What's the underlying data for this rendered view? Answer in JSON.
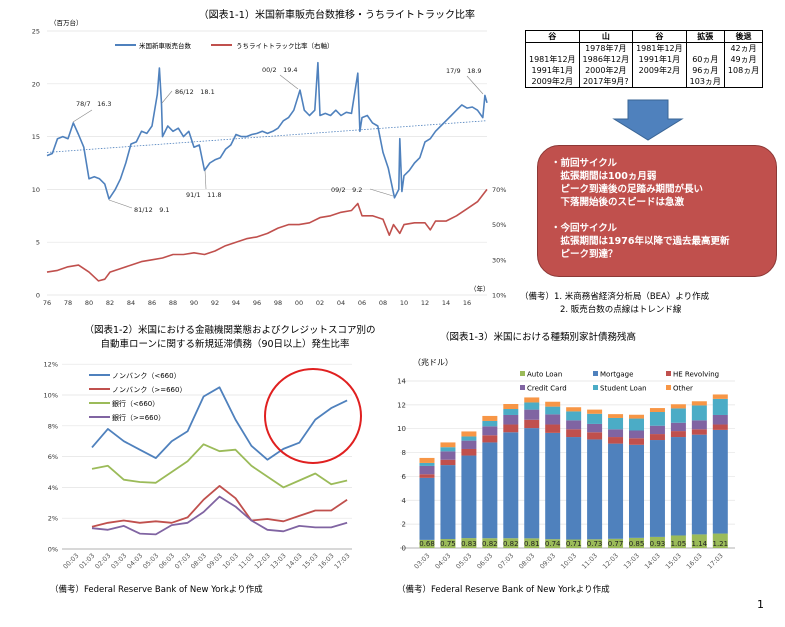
{
  "fig1": {
    "title": "（図表1-1）米国新車販売台数推移・うちライトトラック比率",
    "unit": "（百万台）",
    "year_unit": "（年）",
    "legend": [
      "米国新車販売台数",
      "うちライトトラック比率（右軸）"
    ],
    "annotations": [
      "78/7　16.3",
      "81/12　9.1",
      "86/12　18.1",
      "91/1　11.8",
      "00/2　19.4",
      "09/2　9.2",
      "17/9　18.9"
    ]
  },
  "fig1_table": {
    "headers": [
      "谷",
      "山",
      "谷",
      "拡張",
      "後退"
    ],
    "rows": [
      [
        "",
        "1978年7月",
        "1981年12月",
        "",
        "42ヵ月"
      ],
      [
        "1981年12月",
        "1986年12月",
        "1991年1月",
        "60ヵ月",
        "49ヵ月"
      ],
      [
        "1991年1月",
        "2000年2月",
        "2009年2月",
        "96ヵ月",
        "108ヵ月"
      ],
      [
        "2009年2月",
        "2017年9月?",
        "",
        "103ヵ月",
        ""
      ]
    ]
  },
  "callout": {
    "lines": [
      "・前回サイクル",
      "　拡張期間は100ヵ月弱",
      "　ピーク到達後の足踏み期間が長い",
      "　下落開始後のスピードは急激",
      "",
      "・今回サイクル",
      "　拡張期間は1976年以降で過去最高更新",
      "　ピーク到達？"
    ]
  },
  "fig1_notes": [
    "（備考）1. 米商務省経済分析局（BEA）より作成",
    "2. 販売台数の点線はトレンド線"
  ],
  "fig2": {
    "title_line1": "（図表1-2）米国における金融機関業態およびクレジットスコア別の",
    "title_line2": "自動車ローンに関する新規延滞債務（90日以上）発生比率",
    "note": "（備考）Federal Reserve Bank of New Yorkより作成"
  },
  "fig3": {
    "title": "（図表1-3）米国における種類別家計債務残高",
    "unit": "（兆ドル）",
    "note": "（備考）Federal Reserve Bank of New Yorkより作成"
  },
  "page_number": "1",
  "chart_data": [
    {
      "type": "line",
      "title": "（図表1-1）米国新車販売台数推移・うちライトトラック比率",
      "ylabel": "百万台",
      "ylim": [
        0,
        25
      ],
      "yticks": [
        0,
        5,
        10,
        15,
        20,
        25
      ],
      "y2ticks": [
        "10%",
        "30%",
        "50%",
        "70%"
      ],
      "y2lim": [
        10,
        160
      ],
      "xticks": [
        "76",
        "78",
        "80",
        "82",
        "84",
        "86",
        "88",
        "90",
        "92",
        "94",
        "96",
        "98",
        "00",
        "02",
        "04",
        "06",
        "08",
        "10",
        "12",
        "14",
        "16"
      ],
      "series": [
        {
          "name": "米国新車販売台数",
          "color": "#4f81bd",
          "x": [
            1976,
            1976.5,
            1977,
            1977.5,
            1978,
            1978.5,
            1979,
            1979.5,
            1980,
            1980.5,
            1981,
            1981.5,
            1981.9,
            1982.5,
            1983,
            1983.5,
            1984,
            1984.5,
            1985,
            1985.5,
            1986,
            1986.5,
            1986.7,
            1986.9,
            1987,
            1987.5,
            1988,
            1988.5,
            1989,
            1989.5,
            1990,
            1990.5,
            1991,
            1991.5,
            1992,
            1992.5,
            1993,
            1993.5,
            1994,
            1994.5,
            1995,
            1995.5,
            1996,
            1996.5,
            1997,
            1997.5,
            1998,
            1998.5,
            1999,
            1999.5,
            2000.1,
            2000.5,
            2001,
            2001.5,
            2001.8,
            2002,
            2002.5,
            2003,
            2003.5,
            2004,
            2004.5,
            2005,
            2005.6,
            2005.8,
            2006,
            2006.5,
            2007,
            2007.5,
            2008,
            2008.5,
            2009.1,
            2009.5,
            2009.6,
            2009.8,
            2010,
            2010.5,
            2011,
            2011.5,
            2012,
            2012.5,
            2013,
            2013.5,
            2014,
            2014.5,
            2015,
            2015.5,
            2016,
            2016.5,
            2017,
            2017.5,
            2017.7,
            2017.9
          ],
          "values": [
            13.2,
            13.4,
            14.8,
            15.0,
            14.8,
            16.3,
            15.2,
            14.0,
            11.0,
            11.2,
            11.0,
            10.5,
            9.1,
            10.0,
            11.0,
            12.5,
            14.3,
            14.5,
            15.5,
            15.3,
            16.0,
            19.0,
            21.5,
            18.1,
            15.0,
            16.0,
            15.5,
            15.8,
            15.0,
            15.5,
            14.0,
            14.2,
            11.8,
            12.5,
            12.8,
            13.0,
            13.8,
            14.2,
            15.2,
            15.0,
            15.0,
            15.2,
            15.3,
            15.5,
            15.3,
            15.5,
            15.8,
            16.5,
            16.8,
            17.5,
            19.4,
            17.5,
            17.0,
            17.5,
            22.0,
            17.0,
            17.2,
            17.0,
            17.5,
            17.0,
            17.3,
            17.2,
            21.0,
            15.5,
            16.8,
            17.0,
            16.3,
            16.0,
            13.5,
            12.0,
            9.2,
            10.0,
            14.8,
            9.8,
            11.3,
            11.8,
            12.5,
            13.0,
            14.5,
            14.8,
            15.5,
            16.0,
            16.5,
            17.0,
            17.5,
            18.0,
            17.7,
            17.8,
            17.5,
            16.8,
            18.9,
            18.2
          ]
        },
        {
          "name": "うちライトトラック比率（右軸）",
          "color": "#c0504d",
          "unit": "%",
          "x": [
            1976,
            1977,
            1978,
            1979,
            1980,
            1980.9,
            1981.5,
            1982,
            1983,
            1984,
            1985,
            1986,
            1987,
            1988,
            1989,
            1990,
            1991,
            1992,
            1993,
            1994,
            1995,
            1996,
            1997,
            1998,
            1999,
            2000,
            2001,
            2002,
            2003,
            2004,
            2005,
            2005.6,
            2006,
            2007,
            2008,
            2008.6,
            2009,
            2009.6,
            2010,
            2011,
            2012,
            2012.5,
            2013,
            2014,
            2015,
            2016,
            2017,
            2017.9
          ],
          "values": [
            23,
            24,
            26,
            27,
            23,
            18,
            19,
            23,
            25,
            27,
            29,
            30,
            31,
            33,
            33,
            34,
            33,
            35,
            38,
            40,
            42,
            43,
            45,
            48,
            50,
            50,
            51,
            54,
            55,
            57,
            58,
            62,
            55,
            55,
            53,
            44,
            50,
            45,
            50,
            51,
            51,
            47,
            52,
            52,
            55,
            59,
            63,
            70
          ]
        }
      ],
      "trend": {
        "name": "トレンド線",
        "x": [
          1976,
          2017.8
        ],
        "values": [
          13.5,
          16.5
        ]
      }
    },
    {
      "type": "line",
      "title": "（図表1-2）自動車ローンに関する新規延滞債務（90日以上）発生比率",
      "ylim": [
        0,
        12
      ],
      "yticks": [
        "0%",
        "2%",
        "4%",
        "6%",
        "8%",
        "10%",
        "12%"
      ],
      "categories": [
        "00:03",
        "01:03",
        "02:03",
        "03:03",
        "04:03",
        "05:03",
        "06:03",
        "07:03",
        "08:03",
        "09:03",
        "10:03",
        "11:03",
        "12:03",
        "13:03",
        "14:03",
        "15:03",
        "16:03",
        "17:03"
      ],
      "series": [
        {
          "name": "ノンバンク（<660）",
          "color": "#4f81bd",
          "values": [
            null,
            6.6,
            7.8,
            7.0,
            6.45,
            5.9,
            7.0,
            7.65,
            9.9,
            10.5,
            8.4,
            6.7,
            5.8,
            6.5,
            6.9,
            8.4,
            9.15,
            9.65
          ]
        },
        {
          "name": "ノンバンク（>=660）",
          "color": "#c0504d",
          "values": [
            null,
            1.45,
            1.7,
            1.85,
            1.7,
            1.8,
            1.7,
            2.05,
            3.2,
            4.1,
            3.3,
            1.85,
            1.95,
            1.8,
            2.15,
            2.5,
            2.5,
            3.2
          ]
        },
        {
          "name": "銀行（<660）",
          "color": "#9bbb59",
          "values": [
            null,
            5.2,
            5.4,
            4.5,
            4.35,
            4.3,
            5.0,
            5.7,
            6.8,
            6.35,
            6.45,
            5.4,
            4.7,
            4.0,
            4.45,
            4.9,
            4.2,
            4.45
          ]
        },
        {
          "name": "銀行（>=660）",
          "color": "#8064a2",
          "values": [
            null,
            1.35,
            1.25,
            1.5,
            1.0,
            0.95,
            1.55,
            1.7,
            2.4,
            3.4,
            2.75,
            1.85,
            1.25,
            1.15,
            1.5,
            1.4,
            1.4,
            1.7
          ]
        }
      ],
      "legend": "top-left"
    },
    {
      "type": "bar",
      "stacked": true,
      "title": "（図表1-3）米国における種類別家計債務残高",
      "ylabel": "兆ドル",
      "ylim": [
        0,
        14
      ],
      "yticks": [
        "0",
        "2",
        "4",
        "6",
        "8",
        "10",
        "12",
        "14"
      ],
      "categories": [
        "03:03",
        "04:03",
        "05:03",
        "06:03",
        "07:03",
        "08:03",
        "09:03",
        "10:03",
        "11:03",
        "12:03",
        "13:03",
        "14:03",
        "15:03",
        "16:03",
        "17:03"
      ],
      "series": [
        {
          "name": "Auto Loan",
          "color": "#9bbb59",
          "values": [
            0.68,
            0.75,
            0.83,
            0.82,
            0.82,
            0.81,
            0.74,
            0.71,
            0.73,
            0.77,
            0.85,
            0.93,
            1.05,
            1.14,
            1.21
          ],
          "labels": [
            "0.68",
            "0.75",
            "0.83",
            "0.82",
            "0.82",
            "0.81",
            "0.74",
            "0.71",
            "0.73",
            "0.77",
            "0.85",
            "0.93",
            "1.05",
            "1.14",
            "1.21"
          ]
        },
        {
          "name": "Mortgage",
          "color": "#4f81bd",
          "values": [
            5.2,
            6.2,
            6.92,
            8.03,
            8.88,
            9.24,
            8.91,
            8.59,
            8.37,
            7.98,
            7.8,
            8.12,
            8.25,
            8.36,
            8.69
          ]
        },
        {
          "name": "HE Revolving",
          "color": "#c0504d",
          "values": [
            0.3,
            0.45,
            0.55,
            0.6,
            0.65,
            0.7,
            0.7,
            0.65,
            0.6,
            0.55,
            0.55,
            0.5,
            0.5,
            0.45,
            0.45
          ]
        },
        {
          "name": "Credit Card",
          "color": "#8064a2",
          "values": [
            0.7,
            0.7,
            0.7,
            0.75,
            0.8,
            0.85,
            0.85,
            0.75,
            0.7,
            0.65,
            0.65,
            0.7,
            0.7,
            0.75,
            0.8
          ]
        },
        {
          "name": "Student Loan",
          "color": "#4bacc6",
          "values": [
            0.25,
            0.35,
            0.35,
            0.45,
            0.5,
            0.6,
            0.65,
            0.75,
            0.85,
            0.95,
            1.0,
            1.15,
            1.2,
            1.25,
            1.35
          ]
        },
        {
          "name": "Other",
          "color": "#f79646",
          "values": [
            0.42,
            0.4,
            0.42,
            0.42,
            0.42,
            0.42,
            0.41,
            0.35,
            0.35,
            0.32,
            0.32,
            0.33,
            0.35,
            0.35,
            0.37
          ]
        }
      ],
      "legend": "top"
    }
  ]
}
